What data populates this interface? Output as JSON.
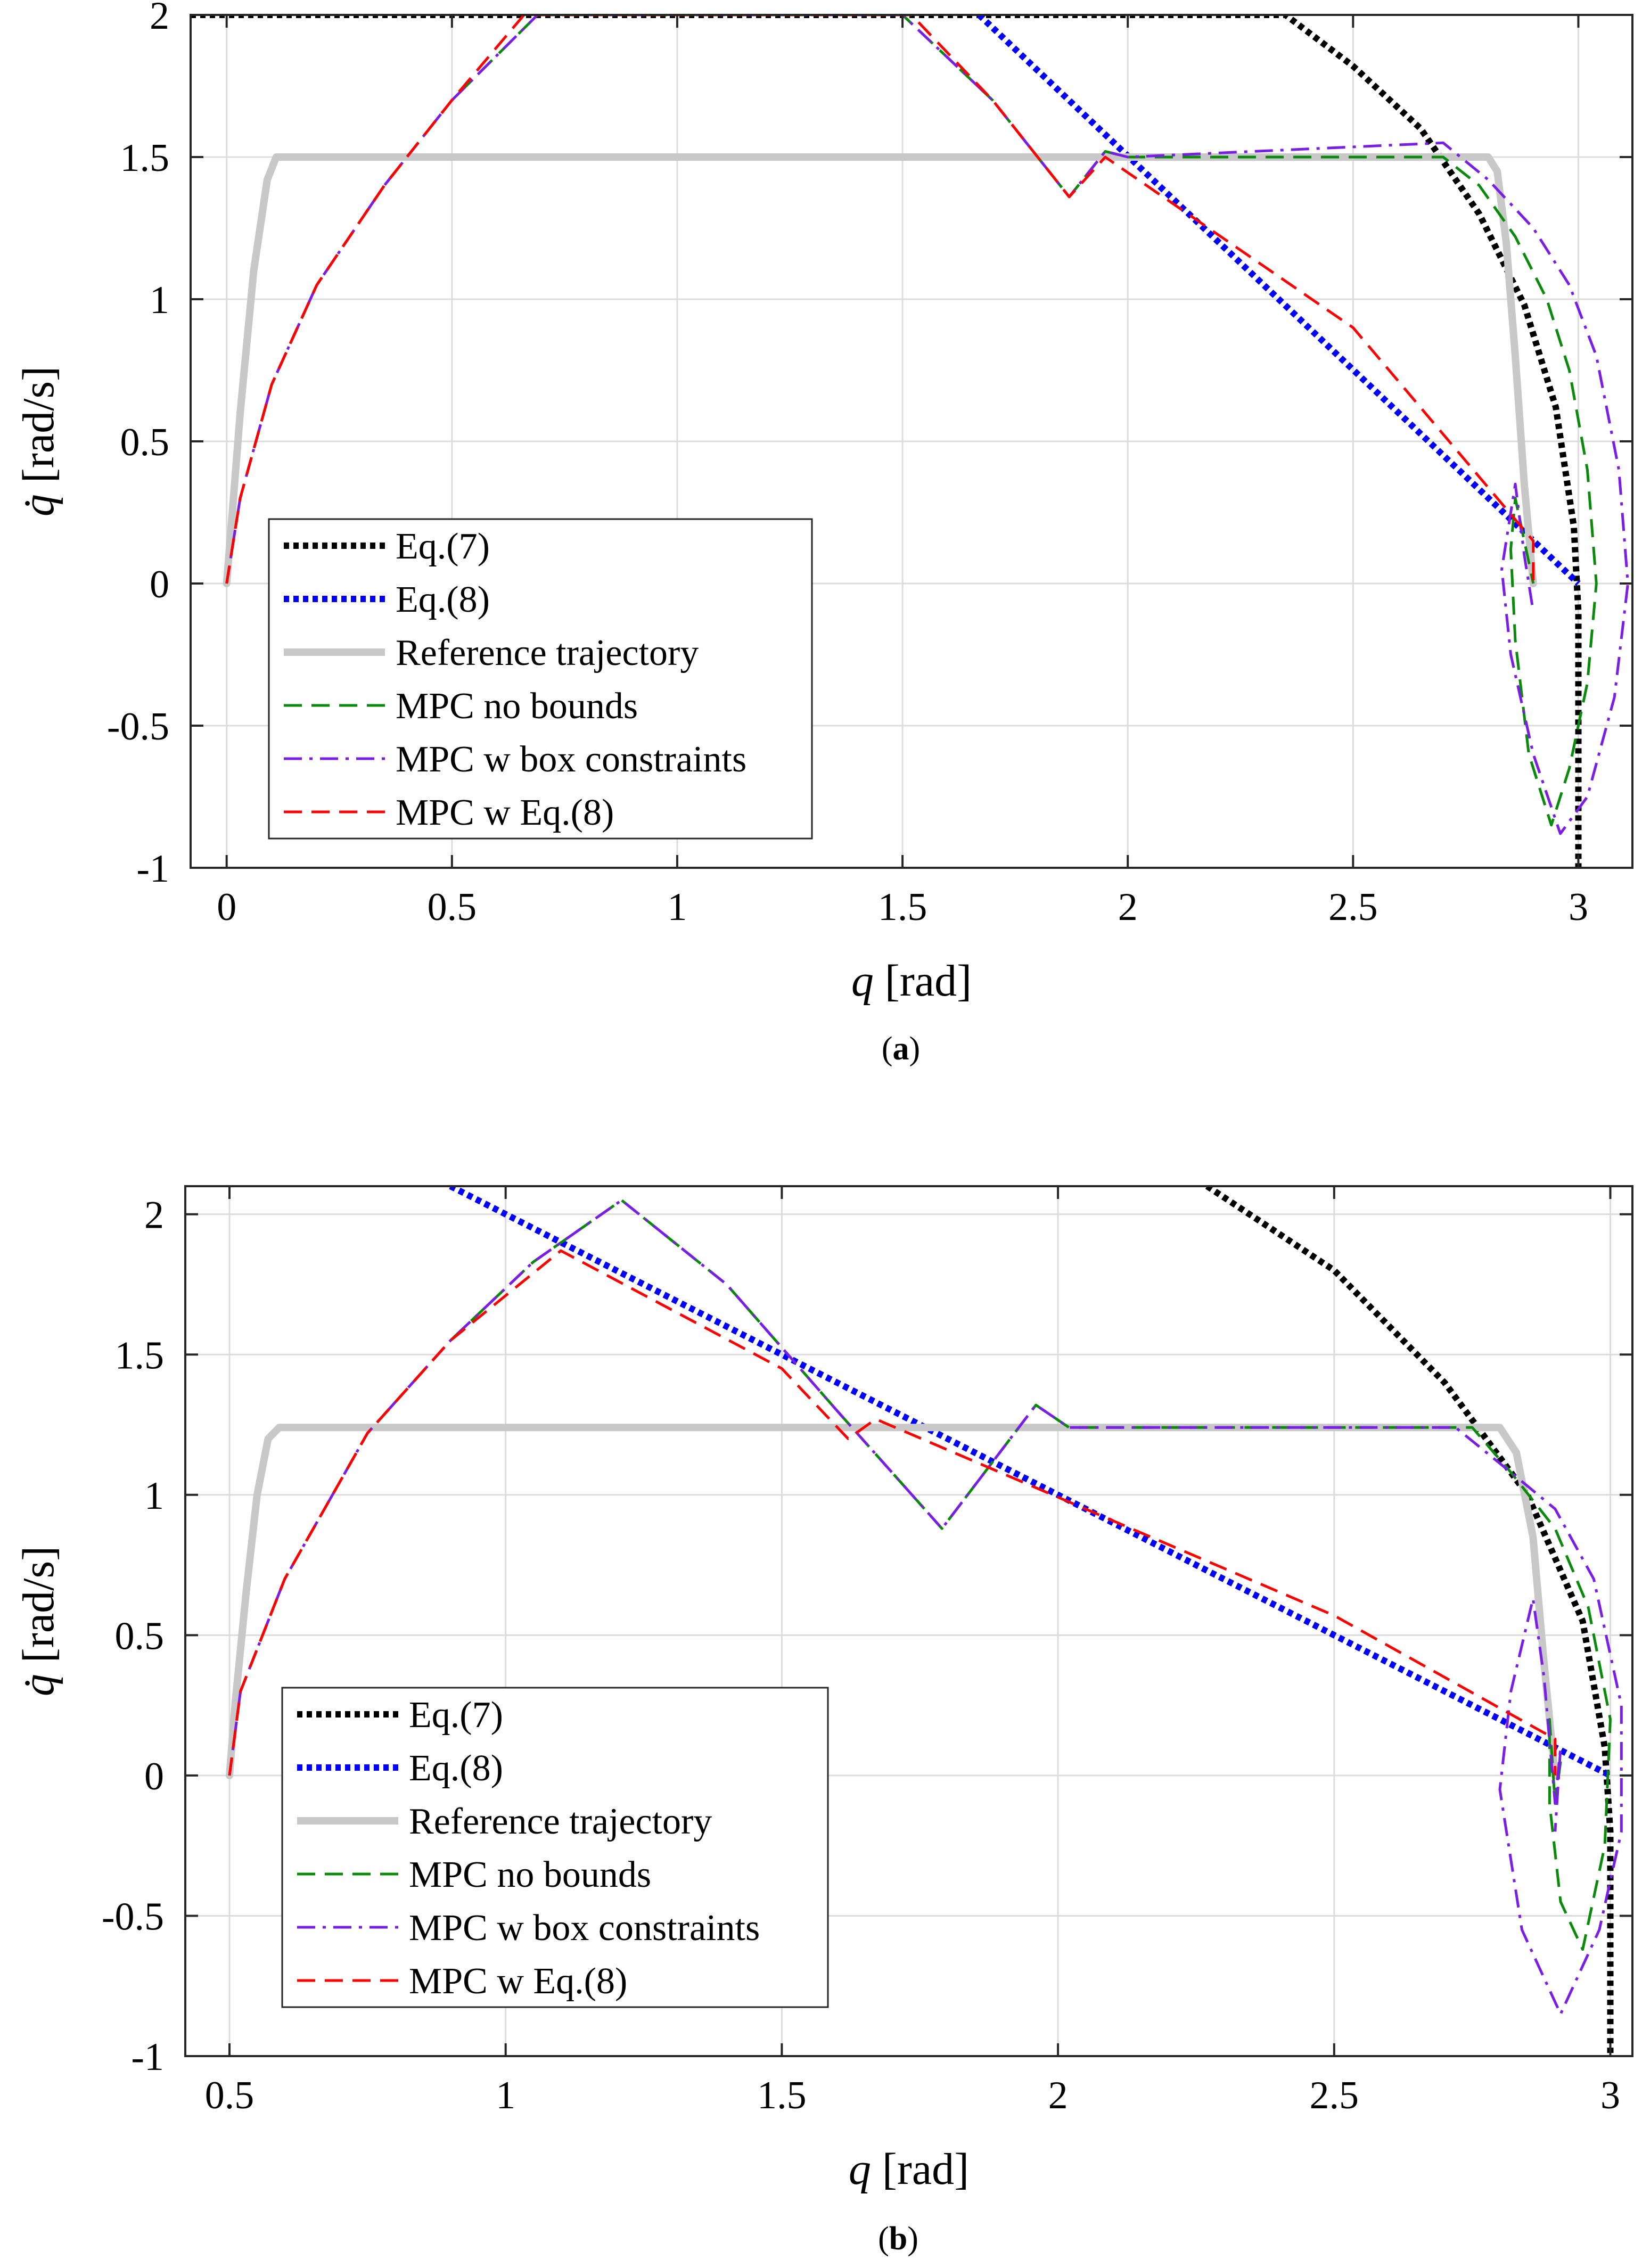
{
  "chart_data": [
    {
      "id": "a",
      "type": "line",
      "caption": "a",
      "xlabel_var": "q",
      "xlabel_unit": "[rad]",
      "ylabel_var": "q̇",
      "ylabel_unit": "[rad/s]",
      "xlim": [
        -0.08,
        3.12
      ],
      "ylim": [
        -1,
        2
      ],
      "xticks": [
        0,
        0.5,
        1,
        1.5,
        2,
        2.5,
        3
      ],
      "xtick_labels": [
        "0",
        "0.5",
        "1",
        "1.5",
        "2",
        "2.5",
        "3"
      ],
      "yticks": [
        -1,
        -0.5,
        0,
        0.5,
        1,
        1.5,
        2
      ],
      "ytick_labels": [
        "-1",
        "-0.5",
        "0",
        "0.5",
        "1",
        "1.5",
        "2"
      ],
      "legend_position": "lower-left",
      "legend": [
        "Eq.(7)",
        "Eq.(8)",
        "Reference trajectory",
        "MPC no bounds",
        "MPC w box constraints",
        "MPC w Eq.(8)"
      ],
      "series": [
        {
          "name": "Eq.(7)",
          "style": "eq7",
          "color": "#000000",
          "points": [
            [
              -0.08,
              2
            ],
            [
              2.35,
              2
            ],
            [
              2.5,
              1.82
            ],
            [
              2.65,
              1.6
            ],
            [
              2.78,
              1.3
            ],
            [
              2.88,
              0.98
            ],
            [
              2.95,
              0.62
            ],
            [
              2.99,
              0.2
            ],
            [
              3.0,
              -0.1
            ],
            [
              3.0,
              -1
            ]
          ]
        },
        {
          "name": "Eq.(8)",
          "style": "eq8",
          "color": "#0000ff",
          "points": [
            [
              1.67,
              2
            ],
            [
              3.0,
              0.0
            ]
          ]
        },
        {
          "name": "Reference trajectory",
          "style": "ref",
          "color": "#c8c8c8",
          "points": [
            [
              0,
              0.0
            ],
            [
              0.01,
              0.2
            ],
            [
              0.03,
              0.6
            ],
            [
              0.06,
              1.1
            ],
            [
              0.09,
              1.42
            ],
            [
              0.11,
              1.5
            ],
            [
              2.8,
              1.5
            ],
            [
              2.82,
              1.45
            ],
            [
              2.84,
              1.2
            ],
            [
              2.86,
              0.8
            ],
            [
              2.88,
              0.35
            ],
            [
              2.9,
              0.0
            ]
          ]
        },
        {
          "name": "MPC no bounds",
          "style": "nobounds",
          "color": "#0a8a0a",
          "points": [
            [
              0,
              0.0
            ],
            [
              0.03,
              0.3
            ],
            [
              0.1,
              0.7
            ],
            [
              0.2,
              1.05
            ],
            [
              0.35,
              1.4
            ],
            [
              0.5,
              1.7
            ],
            [
              0.69,
              2
            ],
            [
              1.5,
              2
            ],
            [
              1.7,
              1.7
            ],
            [
              1.87,
              1.36
            ],
            [
              1.95,
              1.52
            ],
            [
              2.0,
              1.5
            ],
            [
              2.7,
              1.5
            ],
            [
              2.78,
              1.4
            ],
            [
              2.86,
              1.22
            ],
            [
              2.93,
              1.0
            ],
            [
              2.98,
              0.75
            ],
            [
              3.02,
              0.4
            ],
            [
              3.04,
              0.0
            ],
            [
              3.02,
              -0.35
            ],
            [
              2.98,
              -0.65
            ],
            [
              2.94,
              -0.85
            ],
            [
              2.89,
              -0.6
            ],
            [
              2.86,
              -0.2
            ],
            [
              2.85,
              0.12
            ],
            [
              2.86,
              0.3
            ],
            [
              2.88,
              0.15
            ],
            [
              2.9,
              0.0
            ]
          ]
        },
        {
          "name": "MPC w box constraints",
          "style": "box",
          "color": "#7a1ee6",
          "points": [
            [
              0,
              0.0
            ],
            [
              0.03,
              0.3
            ],
            [
              0.1,
              0.7
            ],
            [
              0.2,
              1.05
            ],
            [
              0.35,
              1.4
            ],
            [
              0.5,
              1.7
            ],
            [
              0.69,
              2
            ],
            [
              1.5,
              2
            ],
            [
              1.7,
              1.7
            ],
            [
              1.87,
              1.36
            ],
            [
              1.95,
              1.52
            ],
            [
              2.0,
              1.5
            ],
            [
              2.7,
              1.55
            ],
            [
              2.8,
              1.42
            ],
            [
              2.9,
              1.25
            ],
            [
              2.98,
              1.05
            ],
            [
              3.04,
              0.8
            ],
            [
              3.09,
              0.4
            ],
            [
              3.11,
              0.0
            ],
            [
              3.08,
              -0.4
            ],
            [
              3.02,
              -0.75
            ],
            [
              2.96,
              -0.88
            ],
            [
              2.9,
              -0.6
            ],
            [
              2.85,
              -0.25
            ],
            [
              2.83,
              0.05
            ],
            [
              2.86,
              0.35
            ],
            [
              2.88,
              0.1
            ],
            [
              2.9,
              -0.1
            ]
          ]
        },
        {
          "name": "MPC w Eq.(8)",
          "style": "mpc8",
          "color": "#ff0000",
          "points": [
            [
              0,
              0.0
            ],
            [
              0.03,
              0.3
            ],
            [
              0.1,
              0.7
            ],
            [
              0.2,
              1.05
            ],
            [
              0.35,
              1.4
            ],
            [
              0.5,
              1.7
            ],
            [
              0.66,
              2
            ],
            [
              1.52,
              2
            ],
            [
              1.7,
              1.7
            ],
            [
              1.87,
              1.36
            ],
            [
              1.95,
              1.5
            ],
            [
              2.5,
              0.9
            ],
            [
              2.9,
              0.15
            ],
            [
              2.9,
              0.0
            ]
          ]
        }
      ]
    },
    {
      "id": "b",
      "type": "line",
      "caption": "b",
      "xlabel_var": "q",
      "xlabel_unit": "[rad]",
      "ylabel_var": "q̇",
      "ylabel_unit": "[rad/s]",
      "xlim": [
        0.42,
        3.04
      ],
      "ylim": [
        -1,
        2.1
      ],
      "xticks": [
        0.5,
        1,
        1.5,
        2,
        2.5,
        3
      ],
      "xtick_labels": [
        "0.5",
        "1",
        "1.5",
        "2",
        "2.5",
        "3"
      ],
      "yticks": [
        -1,
        -0.5,
        0,
        0.5,
        1,
        1.5,
        2
      ],
      "ytick_labels": [
        "-1",
        "-0.5",
        "0",
        "0.5",
        "1",
        "1.5",
        "2"
      ],
      "legend_position": "lower-left",
      "legend": [
        "Eq.(7)",
        "Eq.(8)",
        "Reference trajectory",
        "MPC no bounds",
        "MPC w box constraints",
        "MPC w Eq.(8)"
      ],
      "series": [
        {
          "name": "Eq.(7)",
          "style": "eq7",
          "color": "#000000",
          "points": [
            [
              2.27,
              2.1
            ],
            [
              2.5,
              1.8
            ],
            [
              2.7,
              1.4
            ],
            [
              2.85,
              1.0
            ],
            [
              2.95,
              0.55
            ],
            [
              2.99,
              0.1
            ],
            [
              3.0,
              -0.2
            ],
            [
              3.0,
              -1
            ]
          ]
        },
        {
          "name": "Eq.(8)",
          "style": "eq8",
          "color": "#0000ff",
          "points": [
            [
              0.9,
              2.1
            ],
            [
              3.0,
              0.0
            ]
          ]
        },
        {
          "name": "Reference trajectory",
          "style": "ref",
          "color": "#c8c8c8",
          "points": [
            [
              0.5,
              0.0
            ],
            [
              0.51,
              0.25
            ],
            [
              0.53,
              0.65
            ],
            [
              0.55,
              1.0
            ],
            [
              0.57,
              1.2
            ],
            [
              0.59,
              1.24
            ],
            [
              2.8,
              1.24
            ],
            [
              2.83,
              1.15
            ],
            [
              2.86,
              0.85
            ],
            [
              2.88,
              0.4
            ],
            [
              2.9,
              0.0
            ]
          ]
        },
        {
          "name": "MPC no bounds",
          "style": "nobounds",
          "color": "#0a8a0a",
          "points": [
            [
              0.5,
              0.0
            ],
            [
              0.52,
              0.3
            ],
            [
              0.6,
              0.7
            ],
            [
              0.75,
              1.22
            ],
            [
              0.9,
              1.55
            ],
            [
              1.05,
              1.83
            ],
            [
              1.21,
              2.05
            ],
            [
              1.4,
              1.75
            ],
            [
              1.6,
              1.3
            ],
            [
              1.79,
              0.88
            ],
            [
              1.96,
              1.32
            ],
            [
              2.02,
              1.24
            ],
            [
              2.75,
              1.24
            ],
            [
              2.82,
              1.08
            ],
            [
              2.9,
              0.88
            ],
            [
              2.96,
              0.6
            ],
            [
              3.0,
              0.2
            ],
            [
              2.99,
              -0.25
            ],
            [
              2.95,
              -0.62
            ],
            [
              2.91,
              -0.45
            ],
            [
              2.89,
              -0.1
            ],
            [
              2.89,
              0.2
            ],
            [
              2.9,
              -0.1
            ],
            [
              2.91,
              0.05
            ]
          ]
        },
        {
          "name": "MPC w box constraints",
          "style": "box",
          "color": "#7a1ee6",
          "points": [
            [
              0.5,
              0.0
            ],
            [
              0.52,
              0.3
            ],
            [
              0.6,
              0.7
            ],
            [
              0.75,
              1.22
            ],
            [
              0.9,
              1.55
            ],
            [
              1.05,
              1.83
            ],
            [
              1.21,
              2.05
            ],
            [
              1.4,
              1.75
            ],
            [
              1.6,
              1.3
            ],
            [
              1.79,
              0.88
            ],
            [
              1.96,
              1.32
            ],
            [
              2.02,
              1.24
            ],
            [
              2.72,
              1.24
            ],
            [
              2.82,
              1.08
            ],
            [
              2.9,
              0.95
            ],
            [
              2.97,
              0.7
            ],
            [
              3.02,
              0.25
            ],
            [
              3.02,
              -0.2
            ],
            [
              2.98,
              -0.55
            ],
            [
              2.91,
              -0.85
            ],
            [
              2.84,
              -0.55
            ],
            [
              2.8,
              -0.05
            ],
            [
              2.82,
              0.3
            ],
            [
              2.86,
              0.63
            ],
            [
              2.88,
              0.35
            ],
            [
              2.9,
              -0.1
            ],
            [
              2.91,
              0.1
            ],
            [
              2.9,
              -0.2
            ]
          ]
        },
        {
          "name": "MPC w Eq.(8)",
          "style": "mpc8",
          "color": "#ff0000",
          "points": [
            [
              0.5,
              0.0
            ],
            [
              0.52,
              0.3
            ],
            [
              0.6,
              0.7
            ],
            [
              0.75,
              1.22
            ],
            [
              0.9,
              1.55
            ],
            [
              1.1,
              1.87
            ],
            [
              1.5,
              1.45
            ],
            [
              1.62,
              1.2
            ],
            [
              1.67,
              1.27
            ],
            [
              2.5,
              0.57
            ],
            [
              2.9,
              0.13
            ],
            [
              2.9,
              0.0
            ]
          ]
        }
      ]
    }
  ]
}
